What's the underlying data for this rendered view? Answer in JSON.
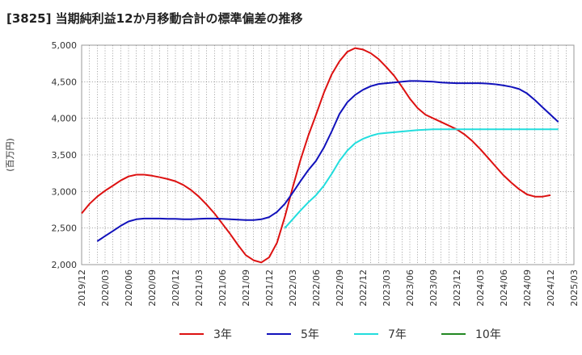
{
  "chart_data": {
    "type": "line",
    "title": "[3825]  当期純利益12か月移動合計の標準偏差の推移",
    "ylabel": "(百万円)",
    "xlabel": "",
    "ylim": [
      2000,
      5000
    ],
    "yticks": [
      2000,
      2500,
      3000,
      3500,
      4000,
      4500,
      5000
    ],
    "ytick_labels": [
      "2,000",
      "2,500",
      "3,000",
      "3,500",
      "4,000",
      "4,500",
      "5,000"
    ],
    "xticks": [
      "2019/12",
      "2020/03",
      "2020/06",
      "2020/09",
      "2020/12",
      "2021/03",
      "2021/06",
      "2021/09",
      "2021/12",
      "2022/03",
      "2022/06",
      "2022/09",
      "2022/12",
      "2023/03",
      "2023/06",
      "2023/09",
      "2023/12",
      "2024/03",
      "2024/06",
      "2024/09",
      "2024/12",
      "2025/03"
    ],
    "grid": true,
    "legend_position": "bottom",
    "series": [
      {
        "name": "3年",
        "color": "#dd1111",
        "points": [
          [
            "2019/12",
            2700
          ],
          [
            "2020/01",
            2830
          ],
          [
            "2020/02",
            2930
          ],
          [
            "2020/03",
            3010
          ],
          [
            "2020/04",
            3080
          ],
          [
            "2020/05",
            3150
          ],
          [
            "2020/06",
            3205
          ],
          [
            "2020/07",
            3230
          ],
          [
            "2020/08",
            3230
          ],
          [
            "2020/09",
            3215
          ],
          [
            "2020/10",
            3195
          ],
          [
            "2020/11",
            3170
          ],
          [
            "2020/12",
            3140
          ],
          [
            "2021/01",
            3090
          ],
          [
            "2021/02",
            3020
          ],
          [
            "2021/03",
            2930
          ],
          [
            "2021/04",
            2820
          ],
          [
            "2021/05",
            2700
          ],
          [
            "2021/06",
            2560
          ],
          [
            "2021/07",
            2420
          ],
          [
            "2021/08",
            2270
          ],
          [
            "2021/09",
            2130
          ],
          [
            "2021/10",
            2060
          ],
          [
            "2021/11",
            2030
          ],
          [
            "2021/12",
            2100
          ],
          [
            "2022/01",
            2300
          ],
          [
            "2022/02",
            2650
          ],
          [
            "2022/03",
            3050
          ],
          [
            "2022/04",
            3430
          ],
          [
            "2022/05",
            3760
          ],
          [
            "2022/06",
            4050
          ],
          [
            "2022/07",
            4350
          ],
          [
            "2022/08",
            4600
          ],
          [
            "2022/09",
            4780
          ],
          [
            "2022/10",
            4910
          ],
          [
            "2022/11",
            4960
          ],
          [
            "2022/12",
            4940
          ],
          [
            "2023/01",
            4890
          ],
          [
            "2023/02",
            4810
          ],
          [
            "2023/03",
            4700
          ],
          [
            "2023/04",
            4580
          ],
          [
            "2023/05",
            4430
          ],
          [
            "2023/06",
            4270
          ],
          [
            "2023/07",
            4140
          ],
          [
            "2023/08",
            4050
          ],
          [
            "2023/09",
            4000
          ],
          [
            "2023/10",
            3950
          ],
          [
            "2023/11",
            3900
          ],
          [
            "2023/12",
            3850
          ],
          [
            "2024/01",
            3780
          ],
          [
            "2024/02",
            3690
          ],
          [
            "2024/03",
            3580
          ],
          [
            "2024/04",
            3460
          ],
          [
            "2024/05",
            3340
          ],
          [
            "2024/06",
            3220
          ],
          [
            "2024/07",
            3120
          ],
          [
            "2024/08",
            3030
          ],
          [
            "2024/09",
            2960
          ],
          [
            "2024/10",
            2930
          ],
          [
            "2024/11",
            2930
          ],
          [
            "2024/12",
            2950
          ]
        ]
      },
      {
        "name": "5年",
        "color": "#1111bb",
        "points": [
          [
            "2020/02",
            2320
          ],
          [
            "2020/03",
            2390
          ],
          [
            "2020/04",
            2460
          ],
          [
            "2020/05",
            2530
          ],
          [
            "2020/06",
            2590
          ],
          [
            "2020/07",
            2620
          ],
          [
            "2020/08",
            2630
          ],
          [
            "2020/09",
            2630
          ],
          [
            "2020/10",
            2630
          ],
          [
            "2020/11",
            2625
          ],
          [
            "2020/12",
            2625
          ],
          [
            "2021/01",
            2620
          ],
          [
            "2021/02",
            2620
          ],
          [
            "2021/03",
            2625
          ],
          [
            "2021/04",
            2630
          ],
          [
            "2021/05",
            2630
          ],
          [
            "2021/06",
            2625
          ],
          [
            "2021/07",
            2620
          ],
          [
            "2021/08",
            2615
          ],
          [
            "2021/09",
            2610
          ],
          [
            "2021/10",
            2610
          ],
          [
            "2021/11",
            2620
          ],
          [
            "2021/12",
            2650
          ],
          [
            "2022/01",
            2720
          ],
          [
            "2022/02",
            2830
          ],
          [
            "2022/03",
            2980
          ],
          [
            "2022/04",
            3140
          ],
          [
            "2022/05",
            3290
          ],
          [
            "2022/06",
            3420
          ],
          [
            "2022/07",
            3600
          ],
          [
            "2022/08",
            3820
          ],
          [
            "2022/09",
            4060
          ],
          [
            "2022/10",
            4220
          ],
          [
            "2022/11",
            4320
          ],
          [
            "2022/12",
            4390
          ],
          [
            "2023/01",
            4440
          ],
          [
            "2023/02",
            4470
          ],
          [
            "2023/03",
            4480
          ],
          [
            "2023/04",
            4490
          ],
          [
            "2023/05",
            4500
          ],
          [
            "2023/06",
            4510
          ],
          [
            "2023/07",
            4510
          ],
          [
            "2023/08",
            4505
          ],
          [
            "2023/09",
            4500
          ],
          [
            "2023/10",
            4490
          ],
          [
            "2023/11",
            4485
          ],
          [
            "2023/12",
            4480
          ],
          [
            "2024/01",
            4480
          ],
          [
            "2024/02",
            4480
          ],
          [
            "2024/03",
            4480
          ],
          [
            "2024/04",
            4475
          ],
          [
            "2024/05",
            4465
          ],
          [
            "2024/06",
            4450
          ],
          [
            "2024/07",
            4430
          ],
          [
            "2024/08",
            4400
          ],
          [
            "2024/09",
            4340
          ],
          [
            "2024/10",
            4250
          ],
          [
            "2024/11",
            4150
          ],
          [
            "2024/12",
            4050
          ],
          [
            "2025/01",
            3950
          ]
        ]
      },
      {
        "name": "7年",
        "color": "#22dddd",
        "points": [
          [
            "2022/02",
            2500
          ],
          [
            "2022/03",
            2620
          ],
          [
            "2022/04",
            2740
          ],
          [
            "2022/05",
            2850
          ],
          [
            "2022/06",
            2950
          ],
          [
            "2022/07",
            3080
          ],
          [
            "2022/08",
            3240
          ],
          [
            "2022/09",
            3420
          ],
          [
            "2022/10",
            3560
          ],
          [
            "2022/11",
            3660
          ],
          [
            "2022/12",
            3720
          ],
          [
            "2023/01",
            3760
          ],
          [
            "2023/02",
            3790
          ],
          [
            "2023/03",
            3800
          ],
          [
            "2023/04",
            3810
          ],
          [
            "2023/05",
            3820
          ],
          [
            "2023/06",
            3830
          ],
          [
            "2023/07",
            3840
          ],
          [
            "2023/08",
            3845
          ],
          [
            "2023/09",
            3850
          ],
          [
            "2023/10",
            3850
          ],
          [
            "2023/11",
            3850
          ],
          [
            "2023/12",
            3850
          ],
          [
            "2024/01",
            3850
          ],
          [
            "2024/02",
            3850
          ],
          [
            "2024/03",
            3850
          ],
          [
            "2024/04",
            3850
          ],
          [
            "2024/05",
            3850
          ],
          [
            "2024/06",
            3850
          ],
          [
            "2024/07",
            3850
          ],
          [
            "2024/08",
            3850
          ],
          [
            "2024/09",
            3850
          ],
          [
            "2024/10",
            3850
          ],
          [
            "2024/11",
            3850
          ],
          [
            "2024/12",
            3850
          ],
          [
            "2025/01",
            3850
          ]
        ]
      },
      {
        "name": "10年",
        "color": "#228822",
        "points": []
      }
    ]
  }
}
